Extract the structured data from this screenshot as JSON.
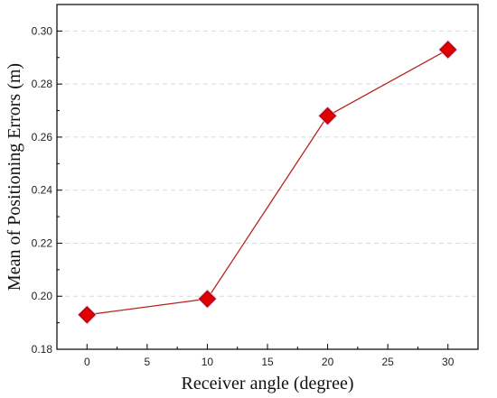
{
  "chart_data": {
    "type": "line",
    "xlabel": "Receiver angle (degree)",
    "ylabel": "Mean of Positioning Errors (m)",
    "xlim": [
      -2.5,
      32.5
    ],
    "ylim": [
      0.18,
      0.31
    ],
    "xticks": [
      0,
      5,
      10,
      15,
      20,
      25,
      30
    ],
    "yticks": [
      0.18,
      0.2,
      0.22,
      0.24,
      0.26,
      0.28,
      0.3
    ],
    "xtick_labels": [
      "0",
      "5",
      "10",
      "15",
      "20",
      "25",
      "30"
    ],
    "ytick_labels": [
      "0.18",
      "0.20",
      "0.22",
      "0.24",
      "0.26",
      "0.28",
      "0.30"
    ],
    "grid": "horizontal dashed",
    "series": [
      {
        "x": [
          0,
          10,
          20,
          30
        ],
        "y": [
          0.193,
          0.199,
          0.268,
          0.293
        ]
      }
    ],
    "colors": {
      "line": "#b5261e",
      "marker": "#e00000",
      "marker_glow": "#f2b6e6",
      "grid": "#d9d9d9",
      "axis": "#000000"
    }
  }
}
